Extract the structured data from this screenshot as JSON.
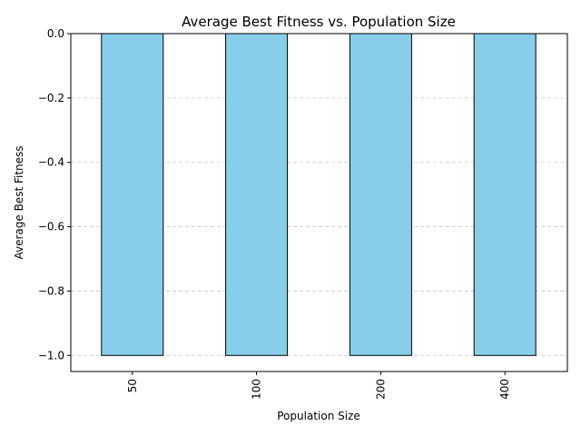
{
  "chart_data": {
    "type": "bar",
    "title": "Average Best Fitness vs. Population Size",
    "xlabel": "Population Size",
    "ylabel": "Average Best Fitness",
    "categories": [
      "50",
      "100",
      "200",
      "400"
    ],
    "values": [
      -1.0,
      -1.0,
      -1.0,
      -1.0
    ],
    "ylim": [
      -1.05,
      0.0
    ],
    "yticks": [
      0.0,
      -0.2,
      -0.4,
      -0.6,
      -0.8,
      -1.0
    ],
    "ytick_labels": [
      "0.0",
      "−0.2",
      "−0.4",
      "−0.6",
      "−0.8",
      "−1.0"
    ],
    "grid": "y-dashed",
    "legend": "none",
    "colors": {
      "bar_fill": "#87ceeb",
      "bar_edge": "#000000",
      "grid": "#c8c8c8"
    }
  }
}
